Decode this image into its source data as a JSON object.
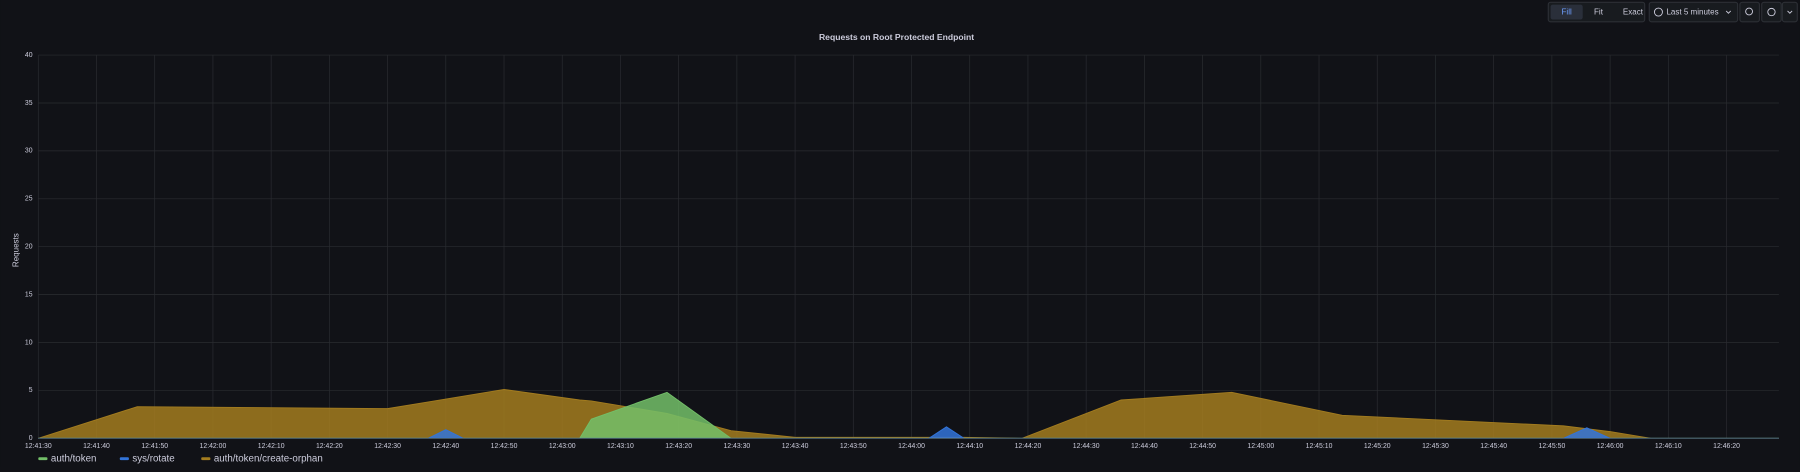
{
  "toolbar": {
    "buttons": [
      "Fill",
      "Fit",
      "Exact"
    ],
    "active": "Fill",
    "time_range": "Last 5 minutes"
  },
  "chart_data": {
    "type": "area",
    "title": "Requests on Root Protected Endpoint",
    "y_label": "Requests",
    "x": [
      "12:41:30",
      "12:41:47",
      "12:42:30",
      "12:42:37",
      "12:42:40",
      "12:42:43",
      "12:42:50",
      "12:43:03",
      "12:43:05",
      "12:43:18",
      "12:43:29",
      "12:43:40",
      "12:44:03",
      "12:44:06",
      "12:44:09",
      "12:44:19",
      "12:44:36",
      "12:44:55",
      "12:45:14",
      "12:45:52",
      "12:45:56",
      "12:46:00",
      "12:46:07",
      "12:46:29"
    ],
    "xlim": [
      "12:41:30",
      "12:46:29"
    ],
    "xticks": [
      "12:41:30",
      "12:41:40",
      "12:41:50",
      "12:42:00",
      "12:42:10",
      "12:42:20",
      "12:42:30",
      "12:42:40",
      "12:42:50",
      "12:43:00",
      "12:43:10",
      "12:43:20",
      "12:43:30",
      "12:43:40",
      "12:43:50",
      "12:44:00",
      "12:44:10",
      "12:44:20",
      "12:44:30",
      "12:44:40",
      "12:44:50",
      "12:45:00",
      "12:45:10",
      "12:45:20",
      "12:45:30",
      "12:45:40",
      "12:45:50",
      "12:46:00",
      "12:46:10",
      "12:46:20"
    ],
    "ylim": [
      0,
      40
    ],
    "yticks": [
      0,
      5,
      10,
      15,
      20,
      25,
      30,
      35,
      40
    ],
    "grid": true,
    "series": [
      {
        "name": "auth/token/create-orphan",
        "color": "#a37c1f",
        "values": [
          0,
          3.3,
          3.1,
          3.8,
          4.1,
          4.4,
          5.1,
          4,
          3.9,
          2.6,
          0.8,
          0.1,
          0.1,
          0.1,
          0.1,
          0,
          4,
          4.8,
          2.4,
          1.3,
          1,
          0.7,
          0,
          0
        ]
      },
      {
        "name": "auth/token",
        "color": "#73bf69",
        "values": [
          0,
          0,
          0,
          0,
          0,
          0,
          0,
          0,
          2,
          4.8,
          0,
          0,
          0,
          0,
          0,
          0,
          0,
          0,
          0,
          0,
          0,
          0,
          0,
          0
        ]
      },
      {
        "name": "sys/rotate",
        "color": "#3274d9",
        "values": [
          0,
          0,
          0,
          0,
          0.9,
          0,
          0,
          0,
          0,
          0,
          0,
          0,
          0,
          1.2,
          0,
          0,
          0,
          0,
          0,
          0,
          1.1,
          0,
          0,
          0
        ]
      }
    ],
    "legend_order": [
      1,
      2,
      0
    ]
  }
}
